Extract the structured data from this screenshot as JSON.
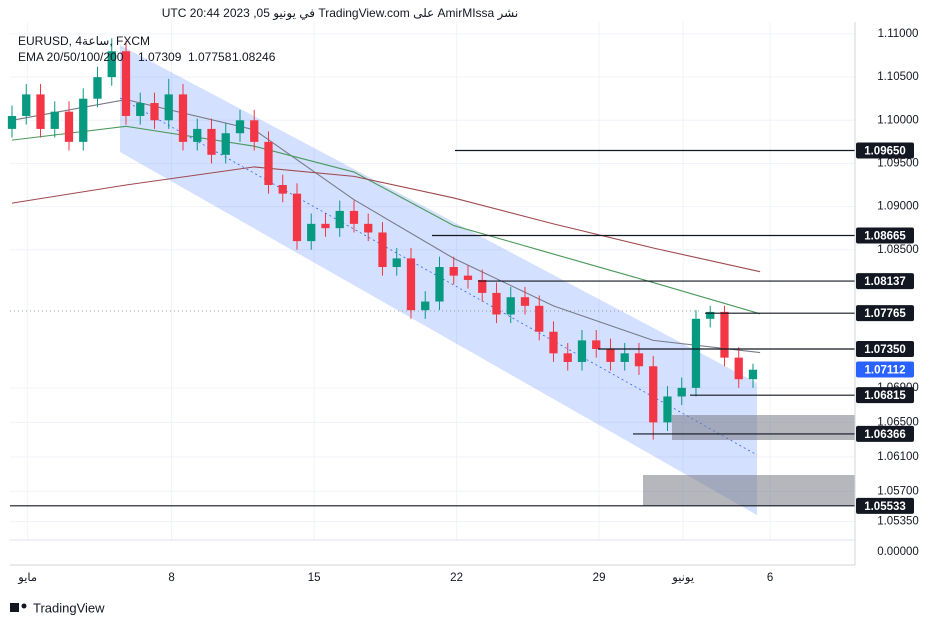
{
  "header": {
    "publisher": "نشر AmirMIssa على TradingView.com في يونيو 05, 2023 20:44 UTC",
    "symbol": "EURUSD, 4ساعة, FXCM",
    "footer": "TradingView"
  },
  "chart_data": {
    "type": "candlestick",
    "open": [
      1.099,
      1.1005,
      1.103,
      1.099,
      1.101,
      1.0975,
      1.1025,
      1.105,
      1.108,
      1.1005,
      1.102,
      1.1,
      1.103,
      1.0975,
      1.099,
      1.096,
      1.0985,
      1.1,
      1.0975,
      1.0925,
      1.0915,
      1.086,
      1.088,
      1.0875,
      1.0895,
      1.088,
      1.087,
      1.083,
      1.084,
      1.078,
      1.079,
      1.083,
      1.082,
      1.0815,
      1.08,
      1.0775,
      1.0795,
      1.0785,
      1.0755,
      1.073,
      1.072,
      1.0745,
      1.0735,
      1.072,
      1.073,
      1.0715,
      1.065,
      1.068,
      1.069,
      1.077,
      1.0778,
      1.0725,
      1.07
    ],
    "high": [
      1.1017,
      1.1042,
      1.1042,
      1.1022,
      1.1022,
      1.1037,
      1.1062,
      1.1095,
      1.1092,
      1.1032,
      1.1032,
      1.1048,
      1.1042,
      1.1002,
      1.1002,
      1.0997,
      1.1012,
      1.1012,
      1.0987,
      1.0937,
      1.0927,
      1.0892,
      1.0892,
      1.0907,
      1.0907,
      1.0892,
      1.0882,
      1.0852,
      1.0852,
      1.0802,
      1.0842,
      1.0842,
      1.0832,
      1.0827,
      1.0812,
      1.0807,
      1.0807,
      1.0797,
      1.0767,
      1.0742,
      1.0757,
      1.0757,
      1.0747,
      1.0742,
      1.0742,
      1.0727,
      1.0692,
      1.0702,
      1.078,
      1.0785,
      1.0785,
      1.0737,
      1.0718
    ],
    "low": [
      1.098,
      1.0995,
      1.098,
      1.098,
      1.0965,
      1.0965,
      1.1015,
      1.104,
      1.0995,
      1.0995,
      1.099,
      1.099,
      1.0965,
      1.0965,
      1.095,
      1.095,
      1.0975,
      1.0965,
      1.0915,
      1.0905,
      1.085,
      1.085,
      1.0865,
      1.0865,
      1.087,
      1.086,
      1.082,
      1.082,
      1.077,
      1.077,
      1.078,
      1.081,
      1.0805,
      1.079,
      1.0765,
      1.0765,
      1.0775,
      1.0745,
      1.072,
      1.071,
      1.071,
      1.0725,
      1.071,
      1.071,
      1.0705,
      1.063,
      1.064,
      1.067,
      1.068,
      1.076,
      1.0715,
      1.069,
      1.069
    ],
    "close": [
      1.1005,
      1.103,
      1.099,
      1.101,
      1.0975,
      1.1025,
      1.105,
      1.108,
      1.1005,
      1.102,
      1.1,
      1.103,
      1.0975,
      1.099,
      1.096,
      1.0985,
      1.1,
      1.0975,
      1.0925,
      1.0915,
      1.086,
      1.088,
      1.0875,
      1.0895,
      1.088,
      1.087,
      1.083,
      1.084,
      1.078,
      1.079,
      1.083,
      1.082,
      1.0815,
      1.08,
      1.0775,
      1.0795,
      1.0785,
      1.0755,
      1.073,
      1.072,
      1.0745,
      1.0735,
      1.072,
      1.073,
      1.0715,
      1.065,
      1.068,
      1.069,
      1.077,
      1.0778,
      1.0725,
      1.07,
      1.0711
    ],
    "up_color": "#089981",
    "down_color": "#f23645",
    "indicator": {
      "label": "EMA 20/50/100/200",
      "series": [
        {
          "color": "#787b86",
          "x": [
            0,
            8,
            17,
            24,
            31,
            38,
            45,
            52.5
          ],
          "values": [
            1.1,
            1.1024,
            1.0989,
            1.0908,
            1.084,
            1.0785,
            1.0745,
            1.07309
          ],
          "value_label": "1.07309"
        },
        {
          "color": "#4c9a5a",
          "x": [
            0,
            8,
            17,
            24,
            31,
            38,
            45,
            52.5
          ],
          "values": [
            1.0977,
            1.0993,
            1.097,
            1.094,
            1.0878,
            1.0845,
            1.0812,
            1.07758
          ],
          "value_label": "1.07758"
        },
        {
          "color": "#a0494f",
          "x": [
            0,
            8,
            17,
            24,
            31,
            38,
            45,
            52.5
          ],
          "values": [
            1.0904,
            1.0925,
            1.0946,
            1.0935,
            1.091,
            1.088,
            1.0852,
            1.08246
          ],
          "value_label": "1.08246"
        }
      ]
    },
    "xlim": [
      -0.14,
      59.16
    ],
    "xticks": [
      {
        "value": 1.1,
        "label": "مايو"
      },
      {
        "value": 11.2,
        "label": "8"
      },
      {
        "value": 21.2,
        "label": "15"
      },
      {
        "value": 31.2,
        "label": "22"
      },
      {
        "value": 41.2,
        "label": "29"
      },
      {
        "value": 47.1,
        "label": "يونيو"
      },
      {
        "value": 53.2,
        "label": "6"
      }
    ],
    "ylim": [
      1.05137,
      1.11104
    ],
    "yticks": [
      {
        "value": 1.11,
        "label": "1.11000"
      },
      {
        "value": 1.105,
        "label": "1.10500"
      },
      {
        "value": 1.1,
        "label": "1.10000"
      },
      {
        "value": 1.095,
        "label": "1.09500"
      },
      {
        "value": 1.09,
        "label": "1.09000"
      },
      {
        "value": 1.085,
        "label": "1.08500"
      },
      {
        "value": 1.069,
        "label": "1.06900"
      },
      {
        "value": 1.065,
        "label": "1.06500"
      },
      {
        "value": 1.061,
        "label": "1.06100"
      },
      {
        "value": 1.057,
        "label": "1.05700"
      },
      {
        "value": 1.0535,
        "label": "1.05350"
      }
    ],
    "axis_extra_label": "0.00000",
    "levels": [
      {
        "value": 1.0965,
        "label": "1.09650"
      },
      {
        "value": 1.08665,
        "label": "1.08665"
      },
      {
        "value": 1.08137,
        "label": "1.08137"
      },
      {
        "value": 1.07765,
        "label": "1.07765"
      },
      {
        "value": 1.0735,
        "label": "1.07350"
      },
      {
        "value": 1.06815,
        "label": "1.06815"
      },
      {
        "value": 1.06366,
        "label": "1.06366"
      },
      {
        "value": 1.05533,
        "label": "1.05533"
      }
    ],
    "current": {
      "value": 1.07112,
      "label": "1.07112",
      "color": "#2962ff"
    },
    "grid": true
  }
}
